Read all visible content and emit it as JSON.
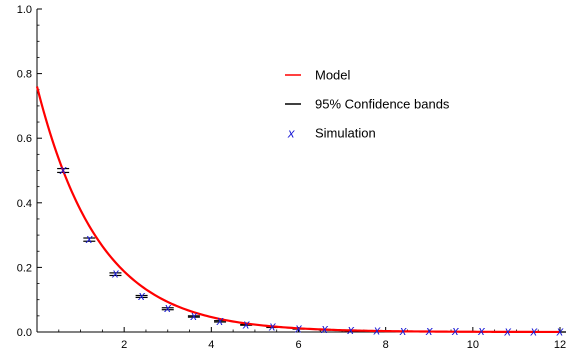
{
  "chart_data": {
    "type": "scatter",
    "xlim": [
      0,
      12
    ],
    "ylim": [
      0,
      1.0
    ],
    "x_ticks": [
      2,
      4,
      6,
      8,
      10,
      12
    ],
    "x_tick_labels": [
      "2",
      "4",
      "6",
      "8",
      "10",
      "12"
    ],
    "y_ticks": [
      0.0,
      0.2,
      0.4,
      0.6,
      0.8,
      1.0
    ],
    "y_tick_labels": [
      "0.0",
      "0.2",
      "0.4",
      "0.6",
      "0.8",
      "1.0"
    ],
    "grid": false,
    "legend_position": "upper-right",
    "legend": [
      {
        "label": "Model",
        "style": "line",
        "color": "#ff0000"
      },
      {
        "label": "95% Confidence bands",
        "style": "line",
        "color": "#000000"
      },
      {
        "label": "Simulation",
        "style": "marker",
        "marker": "x",
        "color": "#1a1ad6"
      }
    ],
    "model": {
      "name": "Model",
      "formula": "0.76*exp(-0.7*x)",
      "x": [
        0,
        0.5,
        1,
        1.5,
        2,
        2.5,
        3,
        3.5,
        4,
        4.5,
        5,
        5.5,
        6,
        6.5,
        7,
        7.5,
        8,
        8.5,
        9,
        9.5,
        10,
        10.5,
        11,
        11.5,
        12
      ],
      "y": [
        0.76,
        0.536,
        0.377,
        0.266,
        0.188,
        0.132,
        0.093,
        0.066,
        0.046,
        0.033,
        0.023,
        0.016,
        0.011,
        0.008,
        0.006,
        0.004,
        0.003,
        0.002,
        0.001,
        0.001,
        0.001,
        0.0,
        0.0,
        0.0,
        0.0
      ],
      "color": "#ff0000"
    },
    "simulation": {
      "name": "Simulation",
      "x": [
        0.6,
        1.2,
        1.8,
        2.4,
        3.0,
        3.6,
        4.2,
        4.8,
        5.4,
        6.0,
        6.6,
        7.2,
        7.8,
        8.4,
        9.0,
        9.6,
        10.2,
        10.8,
        11.4,
        12.0
      ],
      "y": [
        0.5,
        0.286,
        0.179,
        0.11,
        0.072,
        0.048,
        0.033,
        0.022,
        0.015,
        0.01,
        0.007,
        0.005,
        0.003,
        0.002,
        0.002,
        0.001,
        0.001,
        0.0,
        0.0,
        0.0
      ],
      "color": "#1a1ad6"
    },
    "confidence_bands": {
      "name": "95% Confidence bands",
      "x": [
        0.6,
        1.2,
        1.8,
        2.4,
        3.0,
        3.6,
        4.2,
        4.8,
        5.4,
        6.0,
        6.6,
        7.2,
        7.8,
        8.4,
        9.0,
        9.6,
        10.2,
        10.8,
        11.4,
        12.0
      ],
      "lower": [
        0.494,
        0.281,
        0.175,
        0.107,
        0.069,
        0.046,
        0.031,
        0.021,
        0.014,
        0.009,
        0.006,
        0.004,
        0.003,
        0.002,
        0.001,
        0.001,
        0.0,
        0.0,
        0.0,
        0.0
      ],
      "upper": [
        0.506,
        0.291,
        0.183,
        0.113,
        0.075,
        0.05,
        0.035,
        0.023,
        0.016,
        0.011,
        0.008,
        0.006,
        0.004,
        0.002,
        0.002,
        0.001,
        0.001,
        0.0,
        0.0,
        0.0
      ],
      "color": "#000000"
    }
  }
}
